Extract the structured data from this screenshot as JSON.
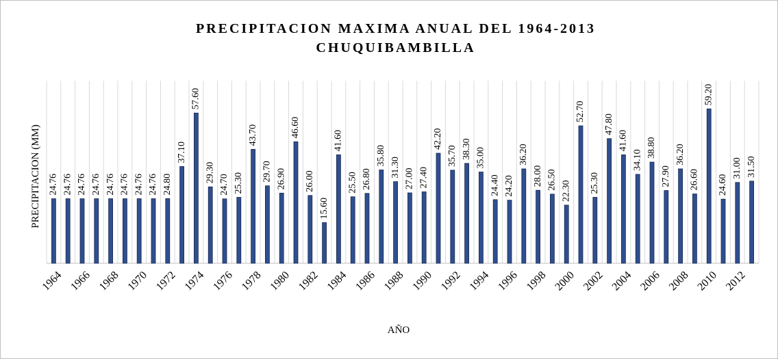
{
  "chart_data": {
    "type": "bar",
    "title": "PRECIPITACION MAXIMA ANUAL DEL 1964-2013",
    "subtitle": "CHUQUIBAMBILLA",
    "x_label": "AÑO",
    "y_label": "PRECIPITACION  (MM)",
    "categories": [
      "1964",
      null,
      "1966",
      null,
      "1968",
      null,
      "1970",
      null,
      "1972",
      null,
      "1974",
      null,
      "1976",
      null,
      "1978",
      null,
      "1980",
      null,
      "1982",
      null,
      "1984",
      null,
      "1986",
      null,
      "1988",
      null,
      "1990",
      null,
      "1992",
      null,
      "1994",
      null,
      "1996",
      null,
      "1998",
      null,
      "2000",
      null,
      "2002",
      null,
      "2004",
      null,
      "2006",
      null,
      "2008",
      null,
      "2010",
      null,
      "2012",
      null
    ],
    "values": [
      24.76,
      24.76,
      24.76,
      24.76,
      24.76,
      24.76,
      24.76,
      24.76,
      24.8,
      37.1,
      57.6,
      29.3,
      24.7,
      25.3,
      43.7,
      29.7,
      26.9,
      46.6,
      26.0,
      15.6,
      41.6,
      25.5,
      26.8,
      35.8,
      31.3,
      27.0,
      27.4,
      42.2,
      35.7,
      38.3,
      35.0,
      24.4,
      24.2,
      36.2,
      28.0,
      26.5,
      22.3,
      52.7,
      25.3,
      47.8,
      41.6,
      34.1,
      38.8,
      27.9,
      36.2,
      26.6,
      59.2,
      24.6,
      31.0,
      31.5
    ],
    "value_labels": [
      "24.76",
      "24.76",
      "24.76",
      "24.76",
      "24.76",
      "24.76",
      "24.76",
      "24.76",
      "24.80",
      "37.10",
      "57.60",
      "29.30",
      "24.70",
      "25.30",
      "43.70",
      "29.70",
      "26.90",
      "46.60",
      "26.00",
      "15.60",
      "41.60",
      "25.50",
      "26.80",
      "35.80",
      "31.30",
      "27.00",
      "27.40",
      "42.20",
      "35.70",
      "38.30",
      "35.00",
      "24.40",
      "24.20",
      "36.20",
      "28.00",
      "26.50",
      "22.30",
      "52.70",
      "25.30",
      "47.80",
      "41.60",
      "34.10",
      "38.80",
      "27.90",
      "36.20",
      "26.60",
      "59.20",
      "24.60",
      "31.00",
      "31.50"
    ],
    "color": "#2f4f8f",
    "ylim": [
      0,
      70
    ],
    "grid": true
  }
}
